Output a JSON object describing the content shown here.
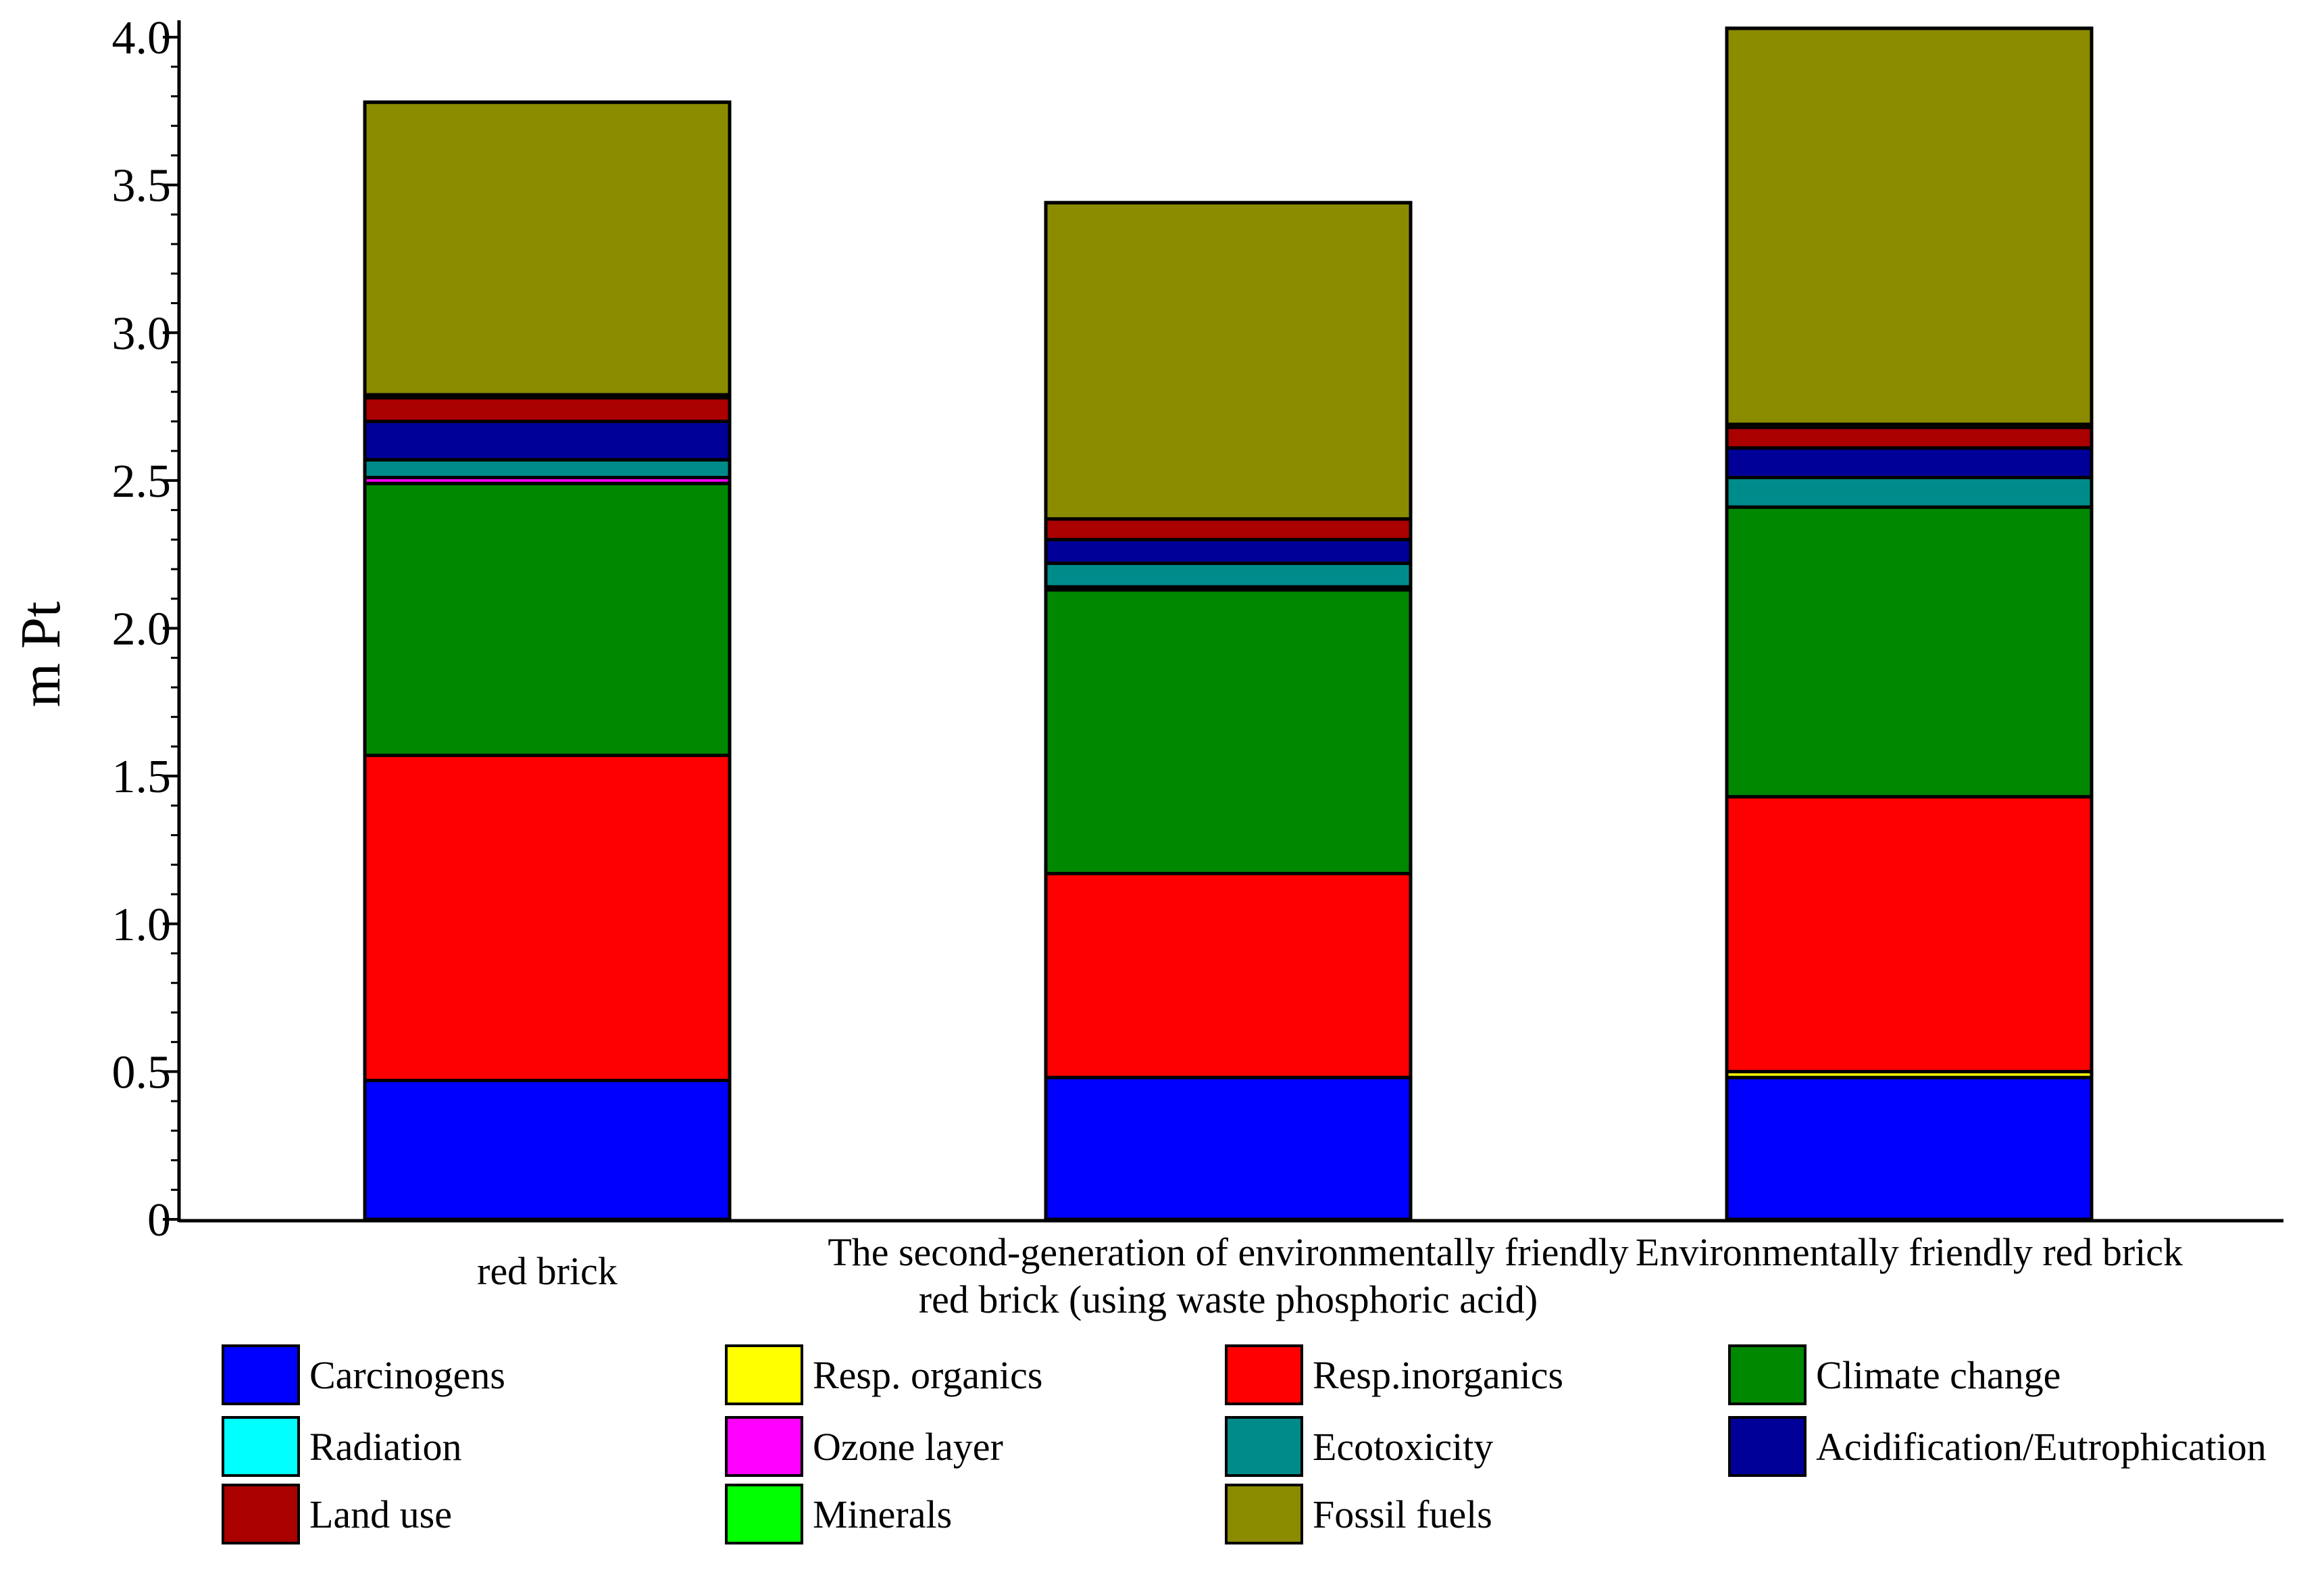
{
  "chart_data": {
    "type": "bar",
    "stacked": true,
    "title": "",
    "xlabel": "",
    "ylabel": "m Pt",
    "ylim": [
      0,
      4.0
    ],
    "yticks": [
      "0",
      "0.5",
      "1.0",
      "1.5",
      "2.0",
      "2.5",
      "3.0",
      "3.5",
      "4.0"
    ],
    "ytick_values": [
      0,
      0.5,
      1.0,
      1.5,
      2.0,
      2.5,
      3.0,
      3.5,
      4.0
    ],
    "grid": false,
    "legend_position": "bottom",
    "categories": [
      [
        "red brick"
      ],
      [
        "The second-generation of environmentally friendly",
        "red brick (using waste phosphoric acid)"
      ],
      [
        "Environmentally friendly  red brick"
      ]
    ],
    "series": [
      {
        "name": "Carcinogens",
        "color": "#0000ff",
        "values": [
          0.47,
          0.48,
          0.48
        ]
      },
      {
        "name": "Resp. organics",
        "color": "#ffff00",
        "values": [
          0.0,
          0.0,
          0.02
        ]
      },
      {
        "name": "Resp.inorganics",
        "color": "#ff0000",
        "values": [
          1.1,
          0.69,
          0.93
        ]
      },
      {
        "name": "Climate  change",
        "color": "#008800",
        "values": [
          0.92,
          0.96,
          0.98
        ]
      },
      {
        "name": "Radiation",
        "color": "#00ffff",
        "values": [
          0.0,
          0.0,
          0.0
        ]
      },
      {
        "name": "Ozone layer",
        "color": "#ff00ff",
        "values": [
          0.02,
          0.01,
          0.0
        ]
      },
      {
        "name": "Ecotoxicity",
        "color": "#008b8b",
        "values": [
          0.06,
          0.08,
          0.1
        ]
      },
      {
        "name": "Acidification/Eutrophication",
        "color": "#000099",
        "values": [
          0.13,
          0.08,
          0.1
        ]
      },
      {
        "name": "Land use",
        "color": "#aa0000",
        "values": [
          0.08,
          0.07,
          0.07
        ]
      },
      {
        "name": "Minerals",
        "color": "#00ff00",
        "values": [
          0.01,
          0.0,
          0.01
        ]
      },
      {
        "name": "Fossil  fuels",
        "color": "#8b8b00",
        "values": [
          0.99,
          1.07,
          1.34
        ]
      }
    ]
  }
}
